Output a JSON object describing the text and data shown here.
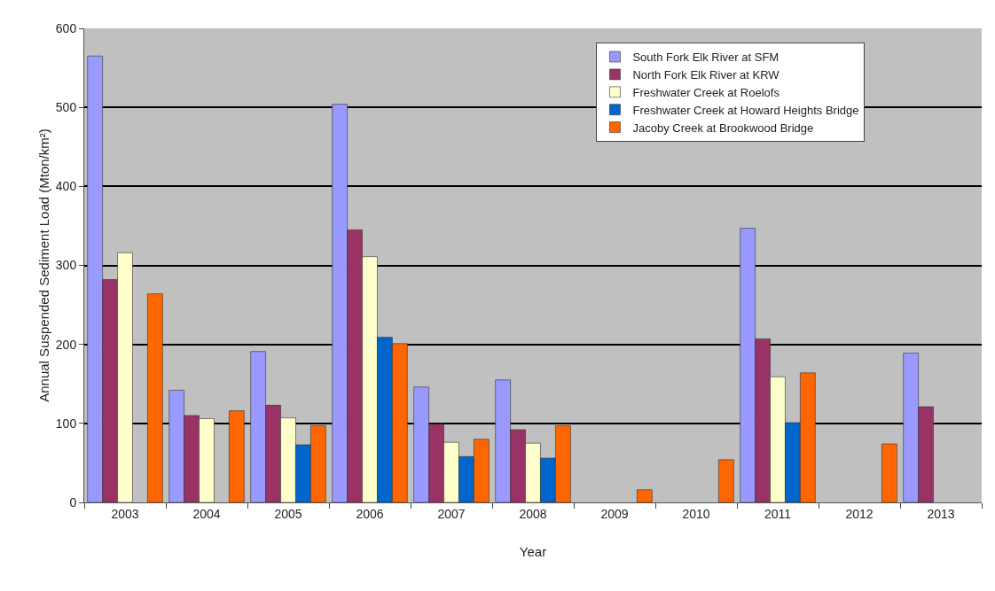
{
  "chart_data": {
    "type": "bar",
    "xlabel": "Year",
    "ylabel": "Annual Suspended Sediment Load (Mton/km²)",
    "categories": [
      "2003",
      "2004",
      "2005",
      "2006",
      "2007",
      "2008",
      "2009",
      "2010",
      "2011",
      "2012",
      "2013"
    ],
    "series": [
      {
        "name": "South Fork Elk River at SFM",
        "color": "#9999ff",
        "values": [
          565,
          142,
          191,
          504,
          146,
          155,
          null,
          null,
          347,
          null,
          189
        ]
      },
      {
        "name": "North Fork Elk River at KRW",
        "color": "#993366",
        "values": [
          282,
          110,
          123,
          345,
          99,
          92,
          null,
          null,
          207,
          null,
          121
        ]
      },
      {
        "name": "Freshwater Creek at Roelofs",
        "color": "#ffffcc",
        "values": [
          316,
          106,
          107,
          311,
          76,
          75,
          null,
          null,
          159,
          null,
          null
        ]
      },
      {
        "name": "Freshwater Creek at Howard Heights Bridge",
        "color": "#0066cc",
        "values": [
          null,
          null,
          73,
          209,
          58,
          56,
          null,
          null,
          101,
          null,
          null
        ]
      },
      {
        "name": "Jacoby Creek at Brookwood Bridge",
        "color": "#ff6600",
        "values": [
          264,
          116,
          97,
          201,
          80,
          97,
          16,
          54,
          164,
          74,
          null
        ]
      }
    ],
    "ylim": [
      0,
      600
    ],
    "yticks": [
      0,
      100,
      200,
      300,
      400,
      500,
      600
    ],
    "grid": "y",
    "legend": "top right"
  }
}
